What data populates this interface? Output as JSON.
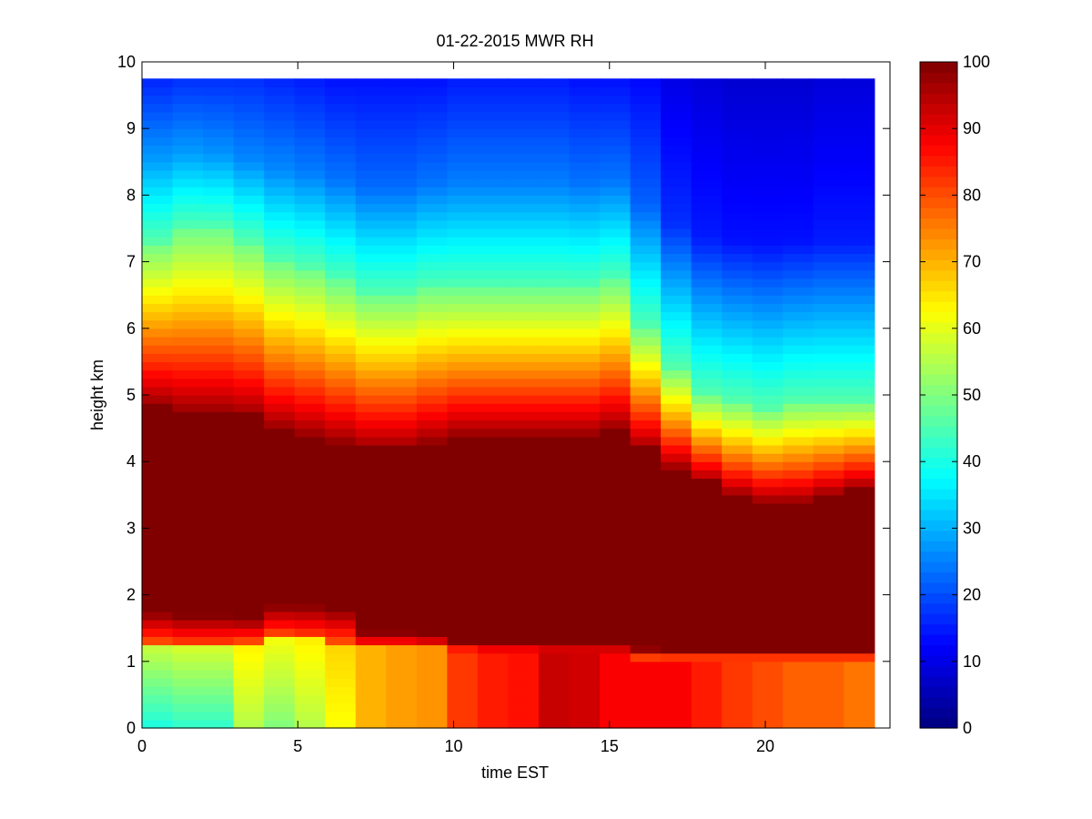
{
  "chart_data": {
    "type": "heatmap",
    "title": "01-22-2015 MWR RH",
    "xlabel": "time EST",
    "ylabel": "height km",
    "xlim": [
      0,
      24
    ],
    "ylim": [
      0,
      10
    ],
    "x_ticks": [
      0,
      5,
      10,
      15,
      20
    ],
    "y_ticks": [
      0,
      1,
      2,
      3,
      4,
      5,
      6,
      7,
      8,
      9,
      10
    ],
    "x_tick_labels": [
      "0",
      "5",
      "10",
      "15",
      "20"
    ],
    "y_tick_labels": [
      "0",
      "1",
      "2",
      "3",
      "4",
      "5",
      "6",
      "7",
      "8",
      "9",
      "10"
    ],
    "colorbar": {
      "range": [
        0,
        100
      ],
      "ticks": [
        0,
        10,
        20,
        30,
        40,
        50,
        60,
        70,
        80,
        90,
        100
      ],
      "tick_labels": [
        "0",
        "10",
        "20",
        "30",
        "40",
        "50",
        "60",
        "70",
        "80",
        "90",
        "100"
      ],
      "colormap": "jet"
    },
    "data_extent": {
      "x": [
        0,
        23.5
      ],
      "y": [
        0,
        9.75
      ]
    },
    "time_columns": [
      0,
      1,
      2,
      3,
      4,
      5,
      6,
      7,
      8,
      9,
      10,
      11,
      12,
      13,
      14,
      15,
      16,
      17,
      18,
      19,
      20,
      21,
      22,
      23
    ],
    "profiles": [
      {
        "dry_top": 1.3,
        "peak_low": 1.75,
        "peak_high": 4.85,
        "mid_top": 7.3,
        "upper": 28,
        "top": 16
      },
      {
        "dry_top": 1.25,
        "peak_low": 1.7,
        "peak_high": 4.75,
        "mid_top": 7.5,
        "upper": 28,
        "top": 17
      },
      {
        "dry_top": 1.25,
        "peak_low": 1.7,
        "peak_high": 4.75,
        "mid_top": 7.5,
        "upper": 27,
        "top": 17
      },
      {
        "dry_top": 1.3,
        "peak_low": 1.65,
        "peak_high": 4.7,
        "mid_top": 7.3,
        "upper": 26,
        "top": 17
      },
      {
        "dry_top": 1.4,
        "peak_low": 1.85,
        "peak_high": 4.5,
        "mid_top": 7.0,
        "upper": 26,
        "top": 16
      },
      {
        "dry_top": 1.35,
        "peak_low": 1.85,
        "peak_high": 4.4,
        "mid_top": 6.9,
        "upper": 25,
        "top": 15
      },
      {
        "dry_top": 1.3,
        "peak_low": 1.8,
        "peak_high": 4.3,
        "mid_top": 6.7,
        "upper": 24,
        "top": 14
      },
      {
        "dry_top": 1.2,
        "peak_low": 1.45,
        "peak_high": 4.2,
        "mid_top": 6.5,
        "upper": 23,
        "top": 14
      },
      {
        "dry_top": 1.2,
        "peak_low": 1.45,
        "peak_high": 4.2,
        "mid_top": 6.5,
        "upper": 23,
        "top": 14
      },
      {
        "dry_top": 1.2,
        "peak_low": 1.4,
        "peak_high": 4.3,
        "mid_top": 6.6,
        "upper": 24,
        "top": 14
      },
      {
        "dry_top": 1.15,
        "peak_low": 1.3,
        "peak_high": 4.4,
        "mid_top": 6.6,
        "upper": 25,
        "top": 15
      },
      {
        "dry_top": 1.1,
        "peak_low": 1.3,
        "peak_high": 4.4,
        "mid_top": 6.6,
        "upper": 25,
        "top": 15
      },
      {
        "dry_top": 1.1,
        "peak_low": 1.3,
        "peak_high": 4.4,
        "mid_top": 6.6,
        "upper": 25,
        "top": 15
      },
      {
        "dry_top": 1.1,
        "peak_low": 1.25,
        "peak_high": 4.4,
        "mid_top": 6.6,
        "upper": 25,
        "top": 15
      },
      {
        "dry_top": 1.1,
        "peak_low": 1.25,
        "peak_high": 4.4,
        "mid_top": 6.6,
        "upper": 24,
        "top": 14
      },
      {
        "dry_top": 1.1,
        "peak_low": 1.25,
        "peak_high": 4.5,
        "mid_top": 6.7,
        "upper": 24,
        "top": 14
      },
      {
        "dry_top": 1.05,
        "peak_low": 1.2,
        "peak_high": 4.2,
        "mid_top": 6.0,
        "upper": 22,
        "top": 13
      },
      {
        "dry_top": 1.05,
        "peak_low": 1.15,
        "peak_high": 3.9,
        "mid_top": 5.4,
        "upper": 17,
        "top": 10
      },
      {
        "dry_top": 1.05,
        "peak_low": 1.15,
        "peak_high": 3.7,
        "mid_top": 5.0,
        "upper": 15,
        "top": 9
      },
      {
        "dry_top": 1.05,
        "peak_low": 1.15,
        "peak_high": 3.5,
        "mid_top": 4.9,
        "upper": 14,
        "top": 8
      },
      {
        "dry_top": 1.05,
        "peak_low": 1.15,
        "peak_high": 3.4,
        "mid_top": 4.8,
        "upper": 14,
        "top": 8
      },
      {
        "dry_top": 1.05,
        "peak_low": 1.15,
        "peak_high": 3.4,
        "mid_top": 4.9,
        "upper": 14,
        "top": 8
      },
      {
        "dry_top": 1.05,
        "peak_low": 1.15,
        "peak_high": 3.5,
        "mid_top": 4.9,
        "upper": 15,
        "top": 9
      },
      {
        "dry_top": 1.05,
        "peak_low": 1.15,
        "peak_high": 3.6,
        "mid_top": 4.9,
        "upper": 15,
        "top": 9
      }
    ],
    "surface_rh": [
      40,
      42,
      42,
      55,
      50,
      55,
      62,
      70,
      72,
      73,
      82,
      85,
      86,
      93,
      92,
      88,
      88,
      88,
      85,
      82,
      80,
      78,
      78,
      76
    ],
    "grid": false
  }
}
